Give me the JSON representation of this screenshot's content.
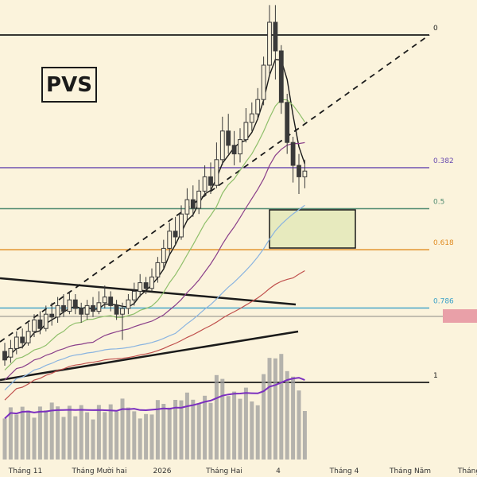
{
  "ticker": "PVS",
  "colors": {
    "background": "#fbf3dc",
    "candle": "#3a3a3a",
    "volume": "#9c9c9c",
    "volume_ma": "#7b2fbf",
    "ma_fast": "#1a1a1a",
    "ma_green": "#8fbf6a",
    "ma_purple": "#8a3f8a",
    "ma_blue": "#8ab4e0",
    "ma_red": "#c0504d",
    "zone_fill": "#e3e7b8",
    "alert_zone": "#e9a0a8"
  },
  "chart_data": {
    "type": "candlestick",
    "title": "",
    "x_ticks": [
      "Tháng 11",
      "Tháng Mười hai",
      "2026",
      "Tháng Hai",
      "4",
      "Tháng 4",
      "Tháng Năm",
      "Tháng"
    ],
    "fib_levels": [
      {
        "label": "0",
        "ratio": 0,
        "color": "#1a1a1a"
      },
      {
        "label": "0.382",
        "ratio": 0.382,
        "color": "#6a4bb0"
      },
      {
        "label": "0.5",
        "ratio": 0.5,
        "color": "#4f8a70"
      },
      {
        "label": "0.618",
        "ratio": 0.618,
        "color": "#e08a1e"
      },
      {
        "label": "0.786",
        "ratio": 0.786,
        "color": "#3aa0c8"
      },
      {
        "label": "1",
        "ratio": 1,
        "color": "#1a1a1a"
      }
    ],
    "candles": [
      [
        0,
        0.05,
        0.02,
        0.08,
        0.0
      ],
      [
        1,
        0.03,
        0.06,
        0.09,
        0.01
      ],
      [
        2,
        0.06,
        0.1,
        0.12,
        0.04
      ],
      [
        3,
        0.1,
        0.08,
        0.13,
        0.06
      ],
      [
        4,
        0.08,
        0.12,
        0.15,
        0.07
      ],
      [
        5,
        0.12,
        0.16,
        0.18,
        0.1
      ],
      [
        6,
        0.16,
        0.13,
        0.19,
        0.11
      ],
      [
        7,
        0.13,
        0.18,
        0.21,
        0.12
      ],
      [
        8,
        0.18,
        0.17,
        0.22,
        0.14
      ],
      [
        9,
        0.17,
        0.21,
        0.24,
        0.15
      ],
      [
        10,
        0.21,
        0.19,
        0.25,
        0.17
      ],
      [
        11,
        0.19,
        0.23,
        0.26,
        0.18
      ],
      [
        12,
        0.23,
        0.2,
        0.25,
        0.18
      ],
      [
        13,
        0.2,
        0.18,
        0.22,
        0.15
      ],
      [
        14,
        0.18,
        0.21,
        0.23,
        0.16
      ],
      [
        15,
        0.21,
        0.19,
        0.24,
        0.17
      ],
      [
        16,
        0.19,
        0.22,
        0.26,
        0.18
      ],
      [
        17,
        0.22,
        0.24,
        0.28,
        0.2
      ],
      [
        18,
        0.24,
        0.21,
        0.26,
        0.19
      ],
      [
        19,
        0.21,
        0.18,
        0.23,
        0.16
      ],
      [
        20,
        0.18,
        0.2,
        0.22,
        0.09
      ],
      [
        21,
        0.2,
        0.23,
        0.25,
        0.18
      ],
      [
        22,
        0.23,
        0.26,
        0.29,
        0.21
      ],
      [
        23,
        0.26,
        0.29,
        0.32,
        0.24
      ],
      [
        24,
        0.29,
        0.27,
        0.31,
        0.25
      ],
      [
        25,
        0.27,
        0.31,
        0.34,
        0.26
      ],
      [
        26,
        0.31,
        0.36,
        0.38,
        0.29
      ],
      [
        27,
        0.36,
        0.41,
        0.44,
        0.34
      ],
      [
        28,
        0.41,
        0.47,
        0.5,
        0.39
      ],
      [
        29,
        0.47,
        0.45,
        0.52,
        0.42
      ],
      [
        30,
        0.45,
        0.53,
        0.56,
        0.44
      ],
      [
        31,
        0.53,
        0.58,
        0.62,
        0.51
      ],
      [
        32,
        0.58,
        0.55,
        0.63,
        0.52
      ],
      [
        33,
        0.55,
        0.61,
        0.65,
        0.53
      ],
      [
        34,
        0.61,
        0.66,
        0.7,
        0.59
      ],
      [
        35,
        0.66,
        0.63,
        0.71,
        0.6
      ],
      [
        36,
        0.63,
        0.72,
        0.78,
        0.62
      ],
      [
        37,
        0.72,
        0.82,
        0.87,
        0.7
      ],
      [
        38,
        0.82,
        0.77,
        0.88,
        0.74
      ],
      [
        39,
        0.77,
        0.74,
        0.82,
        0.7
      ],
      [
        40,
        0.74,
        0.79,
        0.83,
        0.71
      ],
      [
        41,
        0.79,
        0.85,
        0.9,
        0.78
      ],
      [
        42,
        0.85,
        0.88,
        0.92,
        0.82
      ],
      [
        43,
        0.88,
        0.93,
        0.97,
        0.86
      ],
      [
        44,
        0.93,
        1.05,
        1.08,
        0.91
      ],
      [
        45,
        1.05,
        1.2,
        1.26,
        1.02
      ],
      [
        46,
        1.2,
        1.1,
        1.26,
        1.0
      ],
      [
        47,
        1.1,
        0.92,
        1.12,
        0.88
      ],
      [
        48,
        0.92,
        0.78,
        0.95,
        0.74
      ],
      [
        49,
        0.78,
        0.7,
        0.8,
        0.64
      ],
      [
        50,
        0.7,
        0.66,
        0.74,
        0.6
      ],
      [
        51,
        0.66,
        0.68,
        0.72,
        0.62
      ]
    ]
  }
}
